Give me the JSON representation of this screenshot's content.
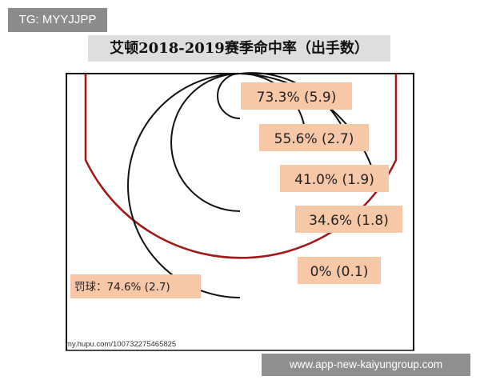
{
  "watermark_top": "TG: MYYJJPP",
  "watermark_bottom": "www.app-new-kaiyungroup.com",
  "source_label": "my.hupu.com/100732275465825",
  "colors": {
    "label_bg": "#f6c8a8",
    "three_point_line": "#a01818",
    "circle_line": "#111111",
    "title_bg": "#dedede"
  },
  "chart_data": {
    "type": "shot_chart",
    "title": "艾顿2018-2019赛季命中率（出手数）",
    "zones": [
      {
        "label": "73.3% (5.9)",
        "fg_pct": 73.3,
        "attempts": 5.9
      },
      {
        "label": "55.6% (2.7)",
        "fg_pct": 55.6,
        "attempts": 2.7
      },
      {
        "label": "41.0% (1.9)",
        "fg_pct": 41.0,
        "attempts": 1.9
      },
      {
        "label": "34.6% (1.8)",
        "fg_pct": 34.6,
        "attempts": 1.8
      },
      {
        "label": "0% (0.1)",
        "fg_pct": 0,
        "attempts": 0.1
      }
    ],
    "free_throw": {
      "label": "罚球：74.6% (2.7)",
      "ft_pct": 74.6,
      "attempts": 2.7
    }
  }
}
